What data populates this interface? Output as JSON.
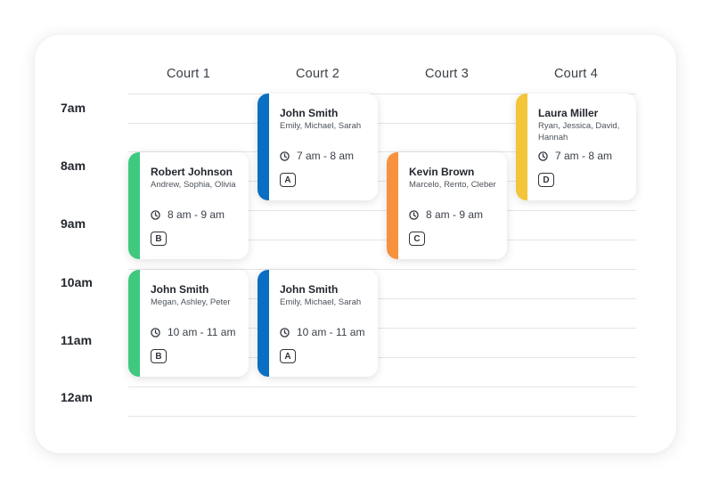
{
  "courts": [
    "Court 1",
    "Court 2",
    "Court 3",
    "Court 4"
  ],
  "times": [
    "7am",
    "8am",
    "9am",
    "10am",
    "11am",
    "12am"
  ],
  "colors": {
    "green": "#3ec97e",
    "blue": "#0a6fc2",
    "orange": "#f7913d",
    "yellow": "#f2c53a"
  },
  "bookings": [
    {
      "name": "John Smith",
      "players": "Emily, Michael, Sarah",
      "time": "7 am - 8 am",
      "court_badge": "A",
      "color": "#0a6fc2"
    },
    {
      "name": "Laura Miller",
      "players": "Ryan, Jessica, David, Hannah",
      "time": "7 am - 8 am",
      "court_badge": "D",
      "color": "#f2c53a"
    },
    {
      "name": "Robert Johnson",
      "players": "Andrew, Sophia, Olivia",
      "time": "8 am - 9 am",
      "court_badge": "B",
      "color": "#3ec97e"
    },
    {
      "name": "Kevin Brown",
      "players": "Marcelo, Rento, Cleber",
      "time": "8 am - 9 am",
      "court_badge": "C",
      "color": "#f7913d"
    },
    {
      "name": "John Smith",
      "players": "Megan, Ashley, Peter",
      "time": "10 am - 11 am",
      "court_badge": "B",
      "color": "#3ec97e"
    },
    {
      "name": "John Smith",
      "players": "Emily, Michael, Sarah",
      "time": "10 am - 11 am",
      "court_badge": "A",
      "color": "#0a6fc2"
    }
  ]
}
